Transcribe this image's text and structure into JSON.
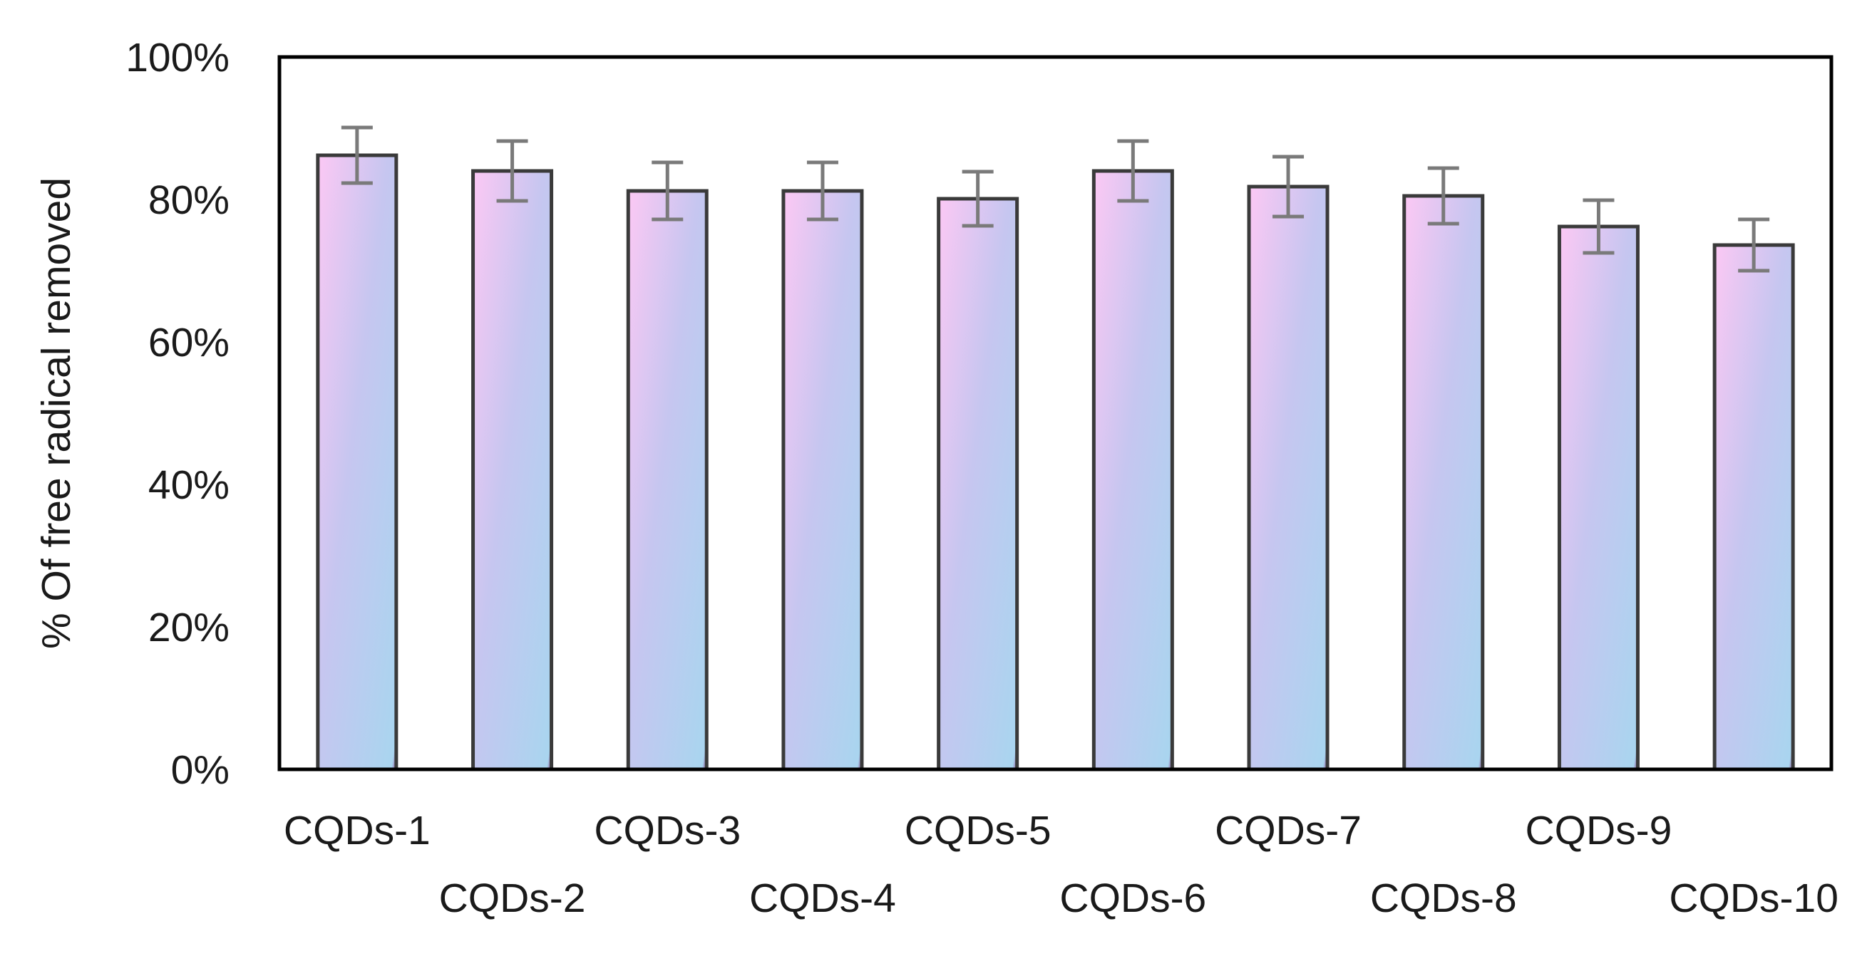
{
  "chart_data": {
    "type": "bar",
    "title": "",
    "xlabel": "",
    "ylabel": "% Of free radical removed",
    "ylim": [
      0,
      100
    ],
    "yticks": [
      0,
      20,
      40,
      60,
      80,
      100
    ],
    "ytick_labels": [
      "0%",
      "20%",
      "40%",
      "60%",
      "80%",
      "100%"
    ],
    "categories": [
      "CQDs-1",
      "CQDs-2",
      "CQDs-3",
      "CQDs-4",
      "CQDs-5",
      "CQDs-6",
      "CQDs-7",
      "CQDs-8",
      "CQDs-9",
      "CQDs-10"
    ],
    "values": [
      86.2,
      84.0,
      81.2,
      81.2,
      80.1,
      84.0,
      81.8,
      80.5,
      76.2,
      73.6
    ],
    "errors": [
      3.9,
      4.2,
      4.0,
      4.0,
      3.8,
      4.2,
      4.2,
      3.9,
      3.7,
      3.6
    ],
    "grid": false,
    "bar_fill_colors": [
      "#fcc8f4",
      "#c6c6f0",
      "#a9d5ef",
      "#8a3d8a"
    ],
    "bar_edge_color": "#3a3a3a",
    "errorbar_color": "#7a7a7a"
  }
}
